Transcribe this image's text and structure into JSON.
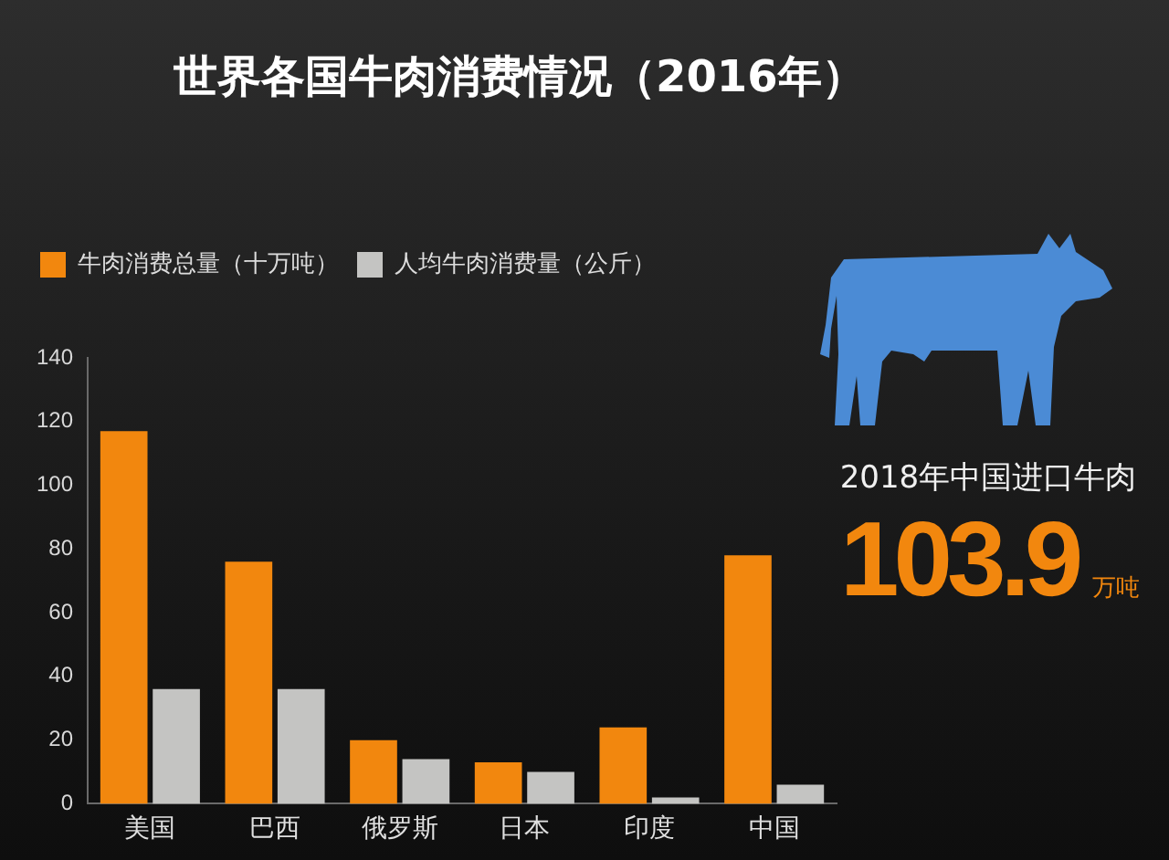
{
  "chart_data": {
    "type": "bar",
    "title": "世界各国牛肉消费情况（2016年）",
    "categories": [
      "美国",
      "巴西",
      "俄罗斯",
      "日本",
      "印度",
      "中国"
    ],
    "series": [
      {
        "name": "牛肉消费总量（十万吨）",
        "color": "#f2870e",
        "values": [
          117,
          76,
          20,
          13,
          24,
          78
        ]
      },
      {
        "name": "人均牛肉消费量（公斤）",
        "color": "#c4c4c2",
        "values": [
          36,
          36,
          14,
          10,
          2,
          6
        ]
      }
    ],
    "ylim": [
      0,
      140
    ],
    "yticks": [
      0,
      20,
      40,
      60,
      80,
      100,
      120,
      140
    ],
    "grid": false,
    "legend": "top left",
    "annotations": [
      "2018年中国进口牛肉",
      "103.9",
      "万吨"
    ]
  }
}
